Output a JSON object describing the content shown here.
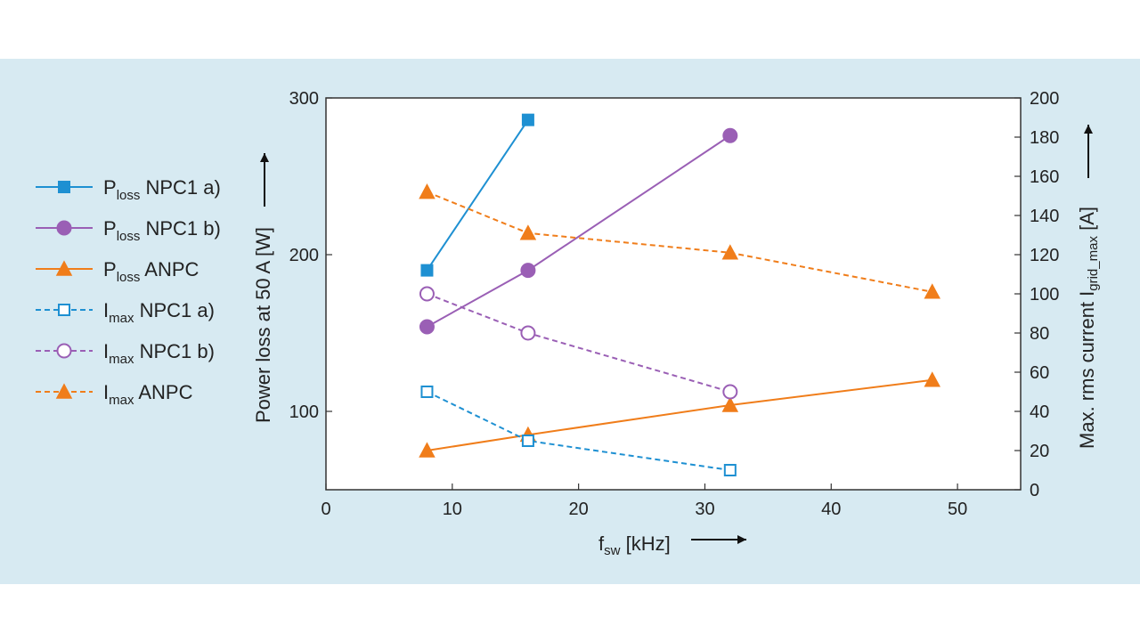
{
  "chart_data": {
    "type": "line",
    "xlabel": {
      "main": "f",
      "sub": "sw",
      "unit": " [kHz]"
    },
    "ylabel_left": "Power loss at 50 A [W]",
    "ylabel_right": {
      "main": "Max. rms current I",
      "sub": "grid_max",
      "unit": " [A]"
    },
    "xlim": [
      0,
      55
    ],
    "ylim_left": [
      50,
      300
    ],
    "ylim_right": [
      0,
      200
    ],
    "x_ticks": [
      0,
      10,
      20,
      30,
      40,
      50
    ],
    "y_left_ticks": [
      100,
      200,
      300
    ],
    "y_right_ticks": [
      0,
      20,
      40,
      60,
      80,
      100,
      120,
      140,
      160,
      180,
      200
    ],
    "colors": {
      "blue": "#1e90d2",
      "purple": "#9a5fb5",
      "orange": "#f07d1a"
    },
    "series": [
      {
        "main": "P",
        "sub": "loss",
        "rest": " NPC1 a)",
        "axis": "left",
        "color": "#1e90d2",
        "dash": false,
        "marker": "square",
        "filled": true,
        "x": [
          8,
          16
        ],
        "y": [
          190,
          286
        ]
      },
      {
        "main": "P",
        "sub": "loss",
        "rest": " NPC1 b)",
        "axis": "left",
        "color": "#9a5fb5",
        "dash": false,
        "marker": "circle",
        "filled": true,
        "x": [
          8,
          16,
          32
        ],
        "y": [
          154,
          190,
          276
        ]
      },
      {
        "main": "P",
        "sub": "loss",
        "rest": " ANPC",
        "axis": "left",
        "color": "#f07d1a",
        "dash": false,
        "marker": "triangle",
        "filled": true,
        "x": [
          8,
          16,
          32,
          48
        ],
        "y": [
          75,
          85,
          104,
          120
        ]
      },
      {
        "main": "I",
        "sub": "max",
        "rest": " NPC1 a)",
        "axis": "right",
        "color": "#1e90d2",
        "dash": true,
        "marker": "square",
        "filled": false,
        "x": [
          8,
          16,
          32
        ],
        "y": [
          50,
          25,
          10
        ]
      },
      {
        "main": "I",
        "sub": "max",
        "rest": " NPC1 b)",
        "axis": "right",
        "color": "#9a5fb5",
        "dash": true,
        "marker": "circle",
        "filled": false,
        "x": [
          8,
          16,
          32
        ],
        "y": [
          100,
          80,
          50
        ]
      },
      {
        "main": "I",
        "sub": "max",
        "rest": " ANPC",
        "axis": "right",
        "color": "#f07d1a",
        "dash": true,
        "marker": "triangle",
        "filled": true,
        "x": [
          8,
          16,
          32,
          48
        ],
        "y": [
          152,
          131,
          121,
          101
        ]
      }
    ]
  }
}
